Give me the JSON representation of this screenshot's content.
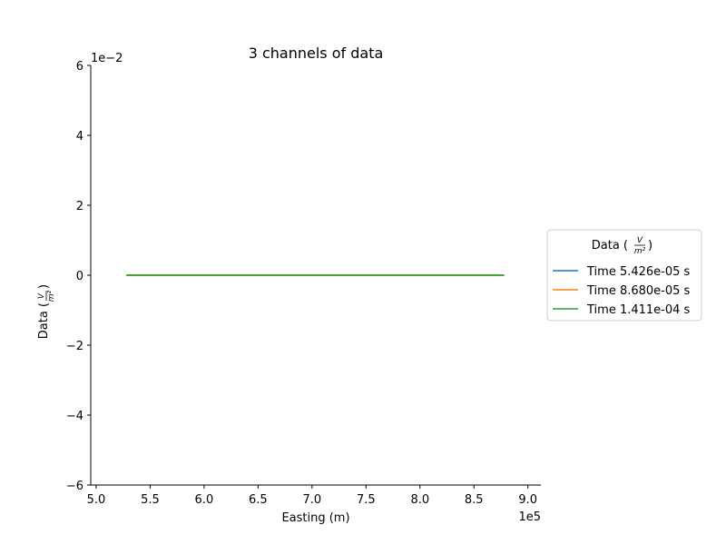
{
  "chart_data": {
    "type": "line",
    "title": "3 channels of data",
    "xlabel": "Easting (m)",
    "ylabel_prefix": "Data (",
    "ylabel_num": "V",
    "ylabel_den": "m²",
    "ylabel_suffix": ")",
    "x_offset_label": "1e5",
    "y_offset_label": "1e−2",
    "xlim": [
      4.95,
      9.12
    ],
    "ylim": [
      -6,
      6
    ],
    "x_ticks": [
      5.0,
      5.5,
      6.0,
      6.5,
      7.0,
      7.5,
      8.0,
      8.5,
      9.0
    ],
    "x_tick_labels": [
      "5.0",
      "5.5",
      "6.0",
      "6.5",
      "7.0",
      "7.5",
      "8.0",
      "8.5",
      "9.0"
    ],
    "y_ticks": [
      -6,
      -4,
      -2,
      0,
      2,
      4,
      6
    ],
    "y_tick_labels": [
      "−6",
      "−4",
      "−2",
      "0",
      "2",
      "4",
      "6"
    ],
    "legend": {
      "placement": "right-outside",
      "title_prefix": "Data (",
      "title_num": "V",
      "title_den": "m²",
      "title_suffix": ")"
    },
    "grid": false,
    "series": [
      {
        "name": "Time 5.426e-05 s",
        "color": "#1f77b4",
        "x": [
          5.28,
          8.78
        ],
        "y": [
          0,
          0
        ]
      },
      {
        "name": "Time 8.680e-05 s",
        "color": "#ff7f0e",
        "x": [
          5.28,
          8.78
        ],
        "y": [
          0,
          0
        ]
      },
      {
        "name": "Time 1.411e-04 s",
        "color": "#2ca02c",
        "x": [
          5.28,
          8.78
        ],
        "y": [
          0,
          0
        ]
      }
    ]
  }
}
